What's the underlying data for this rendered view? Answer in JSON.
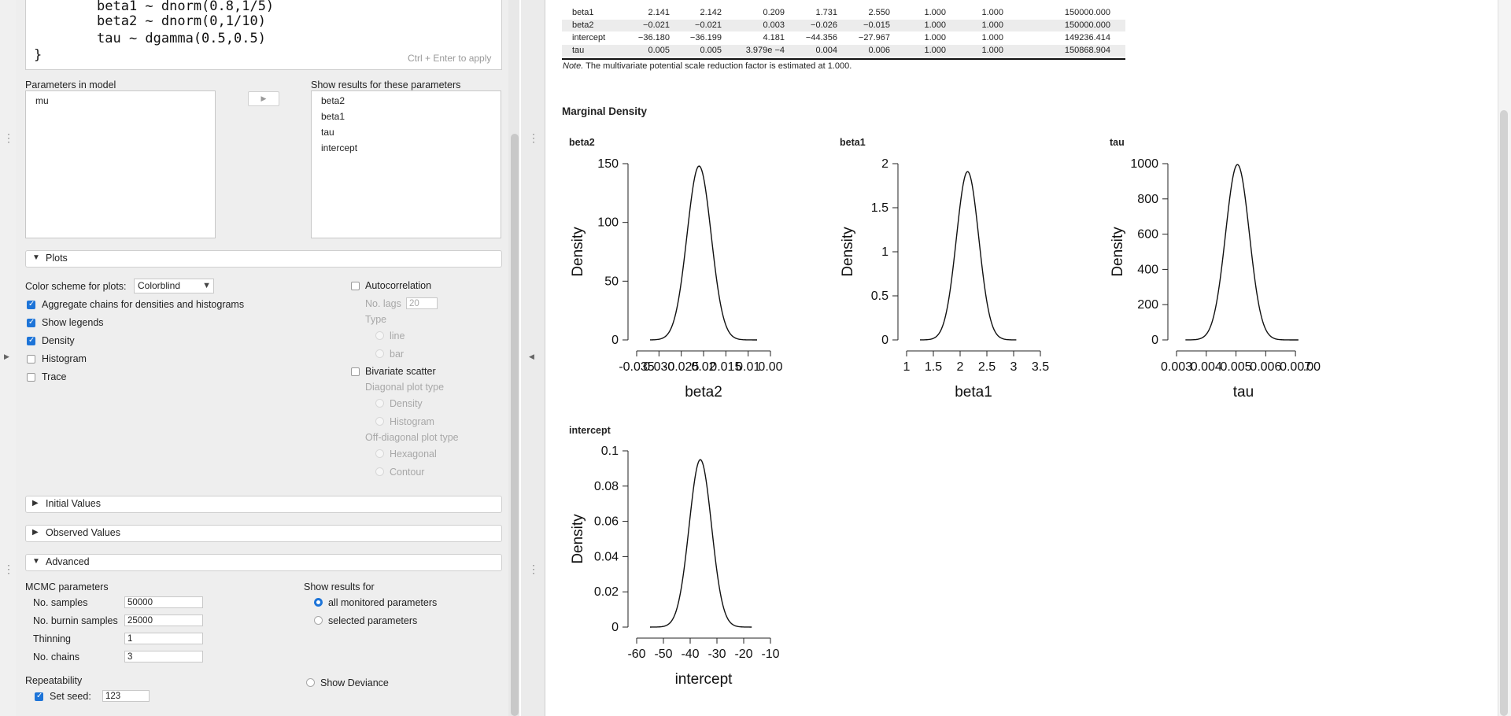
{
  "model": {
    "code_lines": [
      "beta1 ~ dnorm(0.8,1/5)",
      "beta2 ~ dnorm(0,1/10)",
      "tau ~ dgamma(0.5,0.5)"
    ],
    "closing_brace": "}",
    "apply_hint": "Ctrl + Enter to apply"
  },
  "parameters": {
    "in_model_label": "Parameters in model",
    "in_model_items": [
      "mu"
    ],
    "arrow_button": "▶",
    "show_results_label": "Show results for these parameters",
    "show_results_items": [
      "beta2",
      "beta1",
      "tau",
      "intercept"
    ]
  },
  "plots": {
    "section_title": "Plots",
    "color_scheme_label": "Color scheme for plots:",
    "color_scheme_value": "Colorblind",
    "options": [
      {
        "label": "Aggregate chains for densities and histograms",
        "checked": true
      },
      {
        "label": "Show legends",
        "checked": true
      },
      {
        "label": "Density",
        "checked": true
      },
      {
        "label": "Histogram",
        "checked": false
      },
      {
        "label": "Trace",
        "checked": false
      }
    ],
    "autocorrelation_label": "Autocorrelation",
    "no_lags_label": "No. lags",
    "no_lags_value": "20",
    "type_label": "Type",
    "type_line": "line",
    "type_bar": "bar",
    "bivariate_label": "Bivariate scatter",
    "diag_type_label": "Diagonal plot type",
    "diag_density": "Density",
    "diag_histogram": "Histogram",
    "offdiag_type_label": "Off-diagonal plot type",
    "offdiag_hexagonal": "Hexagonal",
    "offdiag_contour": "Contour"
  },
  "sections": {
    "initial_values": "Initial Values",
    "observed_values": "Observed Values",
    "advanced": "Advanced"
  },
  "advanced": {
    "mcmc_label": "MCMC parameters",
    "samples_label": "No. samples",
    "samples_value": "50000",
    "burnin_label": "No. burnin samples",
    "burnin_value": "25000",
    "thinning_label": "Thinning",
    "thinning_value": "1",
    "chains_label": "No. chains",
    "chains_value": "3",
    "show_results_for_label": "Show results for",
    "all_monitored": "all monitored parameters",
    "selected_params": "selected parameters",
    "repeatability_label": "Repeatability",
    "set_seed_label": "Set seed:",
    "set_seed_value": "123",
    "show_deviance_label": "Show Deviance"
  },
  "results_table": {
    "rows": [
      [
        "beta1",
        "2.141",
        "2.142",
        "0.209",
        "1.731",
        "2.550",
        "1.000",
        "1.000",
        "150000.000"
      ],
      [
        "beta2",
        "−0.021",
        "−0.021",
        "0.003",
        "−0.026",
        "−0.015",
        "1.000",
        "1.000",
        "150000.000"
      ],
      [
        "intercept",
        "−36.180",
        "−36.199",
        "4.181",
        "−44.356",
        "−27.967",
        "1.000",
        "1.000",
        "149236.414"
      ],
      [
        "tau",
        "0.005",
        "0.005",
        "3.979e −4",
        "0.004",
        "0.006",
        "1.000",
        "1.000",
        "150868.904"
      ]
    ],
    "note_prefix": "Note.",
    "note_text": " The multivariate potential scale reduction factor is estimated at 1.000."
  },
  "marginal_density_title": "Marginal Density",
  "chart_data": [
    {
      "type": "line",
      "title": "beta2",
      "xlabel": "beta2",
      "ylabel": "Density",
      "x_ticks": [
        "-0.035",
        "-0.030",
        "-0.025",
        "-0.020",
        "-0.015",
        "-0.010",
        "-0.005"
      ],
      "x_tick_labels_shown": [
        "-0.035",
        "0.030",
        "-0.025",
        "0.02",
        "0.015",
        "0.01",
        "0.00"
      ],
      "xlim": [
        -0.035,
        -0.005
      ],
      "ylim": [
        0,
        150
      ],
      "y_ticks": [
        0,
        50,
        100,
        150
      ],
      "peak": {
        "x": -0.021,
        "y": 148
      },
      "sd": 0.0027,
      "support": [
        -0.032,
        -0.008
      ]
    },
    {
      "type": "line",
      "title": "beta1",
      "xlabel": "beta1",
      "ylabel": "Density",
      "x_ticks": [
        "1",
        "1.5",
        "2",
        "2.5",
        "3",
        "3.5"
      ],
      "xlim": [
        1,
        3.5
      ],
      "ylim": [
        0,
        2
      ],
      "y_ticks": [
        "0",
        "0.5",
        "1",
        "1.5",
        "2"
      ],
      "peak": {
        "x": 2.14,
        "y": 1.91
      },
      "sd": 0.209,
      "support": [
        1.25,
        3.05
      ]
    },
    {
      "type": "line",
      "title": "tau",
      "xlabel": "tau",
      "ylabel": "Density",
      "x_ticks": [
        "0.003",
        "0.004",
        "0.005",
        "0.006",
        "0.007"
      ],
      "x_tick_labels_shown": [
        "0.003",
        "0.004",
        "0.005",
        "0.006",
        "0.007",
        ".00"
      ],
      "xlim": [
        0.003,
        0.0075
      ],
      "ylim": [
        0,
        1000
      ],
      "y_ticks": [
        0,
        200,
        400,
        600,
        800,
        1000
      ],
      "peak": {
        "x": 0.00505,
        "y": 995
      },
      "sd": 0.0004,
      "support": [
        0.0033,
        0.0071
      ]
    },
    {
      "type": "line",
      "title": "intercept",
      "xlabel": "intercept",
      "ylabel": "Density",
      "x_ticks": [
        "-60",
        "-50",
        "-40",
        "-30",
        "-20",
        "-10"
      ],
      "xlim": [
        -60,
        -10
      ],
      "ylim": [
        0,
        0.1
      ],
      "y_ticks": [
        "0",
        "0.02",
        "0.04",
        "0.06",
        "0.08",
        "0.1"
      ],
      "peak": {
        "x": -36.2,
        "y": 0.095
      },
      "sd": 4.18,
      "support": [
        -55,
        -17
      ]
    }
  ]
}
